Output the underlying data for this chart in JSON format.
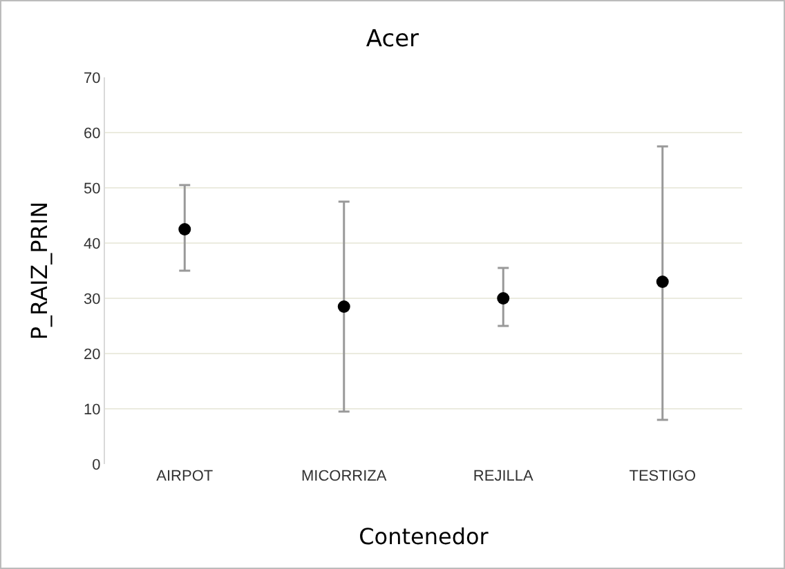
{
  "chart_data": {
    "type": "scatter",
    "title": "Acer",
    "xlabel": "Contenedor",
    "ylabel": "P_RAIZ_PRIN",
    "categories": [
      "AIRPOT",
      "MICORRIZA",
      "REJILLA",
      "TESTIGO"
    ],
    "values": [
      42.5,
      28.5,
      30,
      33
    ],
    "errors": [
      [
        35,
        50.5
      ],
      [
        9.5,
        47.5
      ],
      [
        25,
        35.5
      ],
      [
        8,
        57.5
      ]
    ],
    "color": "#000000",
    "marker": "circle",
    "ylim": [
      0,
      70
    ],
    "yticks": [
      0,
      10,
      20,
      30,
      40,
      50,
      60,
      70
    ],
    "grid": "y",
    "legend": false
  }
}
